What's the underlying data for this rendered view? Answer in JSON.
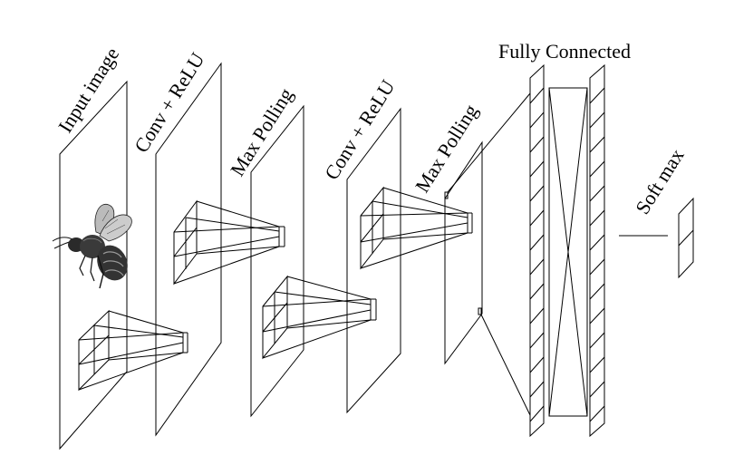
{
  "labels": {
    "input_image": "Input image",
    "conv_relu_1": "Conv + ReLU",
    "max_polling_1": "Max Polling",
    "conv_relu_2": "Conv + ReLU",
    "max_polling_2": "Max Polling",
    "fully_connected": "Fully Connected",
    "soft_max": "Soft max"
  },
  "icons": {
    "input_picture": "bee-icon"
  },
  "colors": {
    "stroke": "#000000",
    "background": "#ffffff"
  }
}
